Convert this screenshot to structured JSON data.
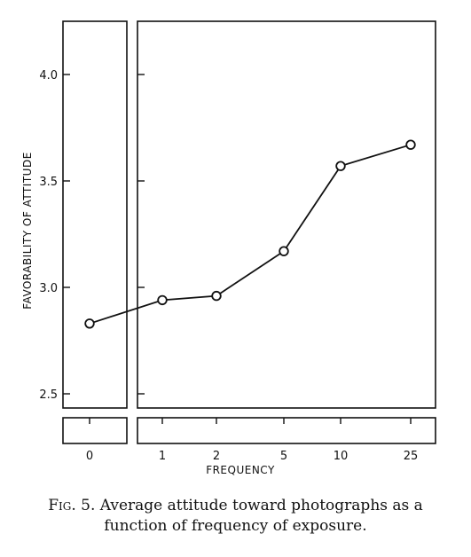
{
  "chart_data": {
    "type": "line",
    "categories": [
      "0",
      "1",
      "2",
      "5",
      "10",
      "25"
    ],
    "values": [
      2.83,
      2.94,
      2.96,
      3.17,
      3.57,
      3.67
    ],
    "xlabel": "FREQUENCY",
    "ylabel": "FAVORABILITY OF ATTITUDE",
    "ylim": [
      2.45,
      4.25
    ],
    "yticks": [
      "2.5",
      "3.0",
      "3.5",
      "4.0"
    ],
    "grid": false,
    "marker": "open-circle",
    "panels": "split: frequency 0 shown in a separate left panel"
  },
  "caption": {
    "prefix": "Fig. 5.",
    "line1": "Average attitude toward photographs as a",
    "line2": "function of frequency of exposure."
  }
}
